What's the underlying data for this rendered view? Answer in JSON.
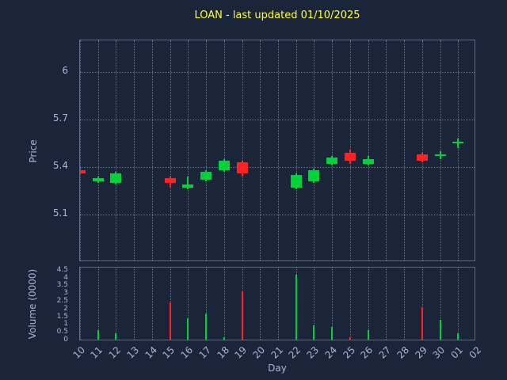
{
  "colors": {
    "background": "#1b2539",
    "up": "#00d23c",
    "down": "#ff2222",
    "grid": "rgba(255,255,255,0.35)",
    "title": "#ffff33",
    "tick_label": "#a9b4d8"
  },
  "chart_data": {
    "type": "candlestick+volume",
    "title": "LOAN - last updated 01/10/2025",
    "xlabel": "Day",
    "grid": true,
    "price_axis": {
      "label": "Price",
      "ticks": [
        "5.1",
        "5.4",
        "5.7",
        "6"
      ],
      "ylim": [
        4.8,
        6.2
      ]
    },
    "volume_axis": {
      "label": "Volume (0000)",
      "ticks": [
        "0",
        "0.5",
        "1",
        "1.5",
        "2",
        "2.5",
        "3",
        "3.5",
        "4",
        "4.5"
      ],
      "ylim": [
        0,
        4.75
      ]
    },
    "categories": [
      "10",
      "11",
      "12",
      "13",
      "14",
      "15",
      "16",
      "17",
      "18",
      "19",
      "20",
      "21",
      "22",
      "23",
      "24",
      "25",
      "26",
      "27",
      "28",
      "29",
      "30",
      "01",
      "02"
    ],
    "candles": [
      {
        "day": "10",
        "open": 5.38,
        "high": 5.39,
        "low": 5.35,
        "close": 5.36,
        "volume": 0
      },
      {
        "day": "11",
        "open": 5.31,
        "high": 5.34,
        "low": 5.3,
        "close": 5.33,
        "volume": 0.7
      },
      {
        "day": "12",
        "open": 5.3,
        "high": 5.37,
        "low": 5.29,
        "close": 5.36,
        "volume": 0.5
      },
      {
        "day": "15",
        "open": 5.33,
        "high": 5.34,
        "low": 5.27,
        "close": 5.3,
        "volume": 2.5
      },
      {
        "day": "16",
        "open": 5.27,
        "high": 5.34,
        "low": 5.26,
        "close": 5.29,
        "volume": 1.5
      },
      {
        "day": "17",
        "open": 5.32,
        "high": 5.38,
        "low": 5.31,
        "close": 5.37,
        "volume": 1.8
      },
      {
        "day": "18",
        "open": 5.38,
        "high": 5.45,
        "low": 5.37,
        "close": 5.44,
        "volume": 0.25
      },
      {
        "day": "19",
        "open": 5.43,
        "high": 5.44,
        "low": 5.34,
        "close": 5.36,
        "volume": 3.2
      },
      {
        "day": "22",
        "open": 5.27,
        "high": 5.36,
        "low": 5.26,
        "close": 5.35,
        "volume": 4.3
      },
      {
        "day": "23",
        "open": 5.31,
        "high": 5.39,
        "low": 5.3,
        "close": 5.38,
        "volume": 1.0
      },
      {
        "day": "24",
        "open": 5.42,
        "high": 5.47,
        "low": 5.41,
        "close": 5.46,
        "volume": 0.9
      },
      {
        "day": "25",
        "open": 5.49,
        "high": 5.51,
        "low": 5.42,
        "close": 5.44,
        "volume": 0.25
      },
      {
        "day": "26",
        "open": 5.42,
        "high": 5.47,
        "low": 5.41,
        "close": 5.45,
        "volume": 0.7
      },
      {
        "day": "29",
        "open": 5.48,
        "high": 5.49,
        "low": 5.43,
        "close": 5.44,
        "volume": 2.2
      },
      {
        "day": "30",
        "open": 5.47,
        "high": 5.5,
        "low": 5.45,
        "close": 5.48,
        "volume": 1.4
      },
      {
        "day": "01",
        "open": 5.55,
        "high": 5.58,
        "low": 5.52,
        "close": 5.56,
        "volume": 0.5
      }
    ]
  }
}
